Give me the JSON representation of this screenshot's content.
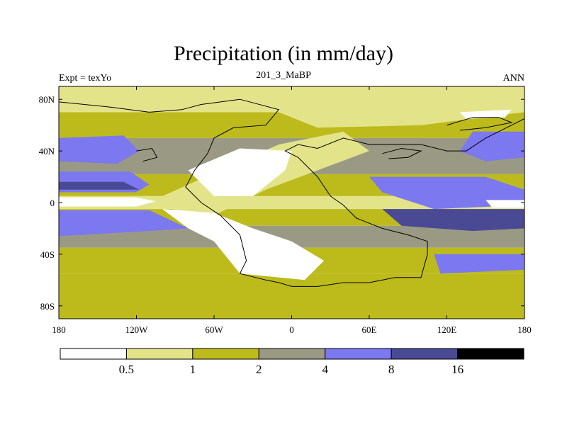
{
  "title": "Precipitation (in mm/day)",
  "left_label": "Expt = texYo",
  "center_label": "201_3_MaBP",
  "right_label": "ANN",
  "lon_ticks": [
    {
      "value": -180,
      "label": "180"
    },
    {
      "value": -120,
      "label": "120W"
    },
    {
      "value": -60,
      "label": "60W"
    },
    {
      "value": 0,
      "label": "0"
    },
    {
      "value": 60,
      "label": "60E"
    },
    {
      "value": 120,
      "label": "120E"
    },
    {
      "value": 180,
      "label": "180"
    }
  ],
  "lat_ticks": [
    {
      "value": 80,
      "label": "80N"
    },
    {
      "value": 40,
      "label": "40N"
    },
    {
      "value": 0,
      "label": "0"
    },
    {
      "value": -40,
      "label": "40S"
    },
    {
      "value": -80,
      "label": "80S"
    }
  ],
  "colorbar": {
    "colors": [
      "#ffffff",
      "#e3e48a",
      "#bdbb1c",
      "#9a9a84",
      "#7b78f0",
      "#4a4a94",
      "#000000"
    ],
    "labels": [
      "0.5",
      "1",
      "2",
      "4",
      "8",
      "16"
    ]
  },
  "bands": [
    {
      "lat": [
        70,
        90
      ],
      "color": "#e3e48a"
    },
    {
      "lat": [
        50,
        70
      ],
      "color": "#bdbb1c"
    },
    {
      "lat": [
        22,
        50
      ],
      "color": "#9a9a84"
    },
    {
      "lat": [
        5,
        22
      ],
      "color": "#bdbb1c"
    },
    {
      "lat": [
        -5,
        5
      ],
      "color": "#e3e48a"
    },
    {
      "lat": [
        -18,
        -5
      ],
      "color": "#bdbb1c"
    },
    {
      "lat": [
        -35,
        -18
      ],
      "color": "#9a9a84"
    },
    {
      "lat": [
        -55,
        -35
      ],
      "color": "#bdbb1c"
    },
    {
      "lat": [
        -90,
        -55
      ],
      "color": "#bdbb1c"
    }
  ],
  "patches": [
    {
      "color": "#7b78f0",
      "points": [
        [
          -180,
          50
        ],
        [
          -130,
          52
        ],
        [
          -118,
          40
        ],
        [
          -135,
          30
        ],
        [
          -180,
          32
        ]
      ]
    },
    {
      "color": "#7b78f0",
      "points": [
        [
          -180,
          24
        ],
        [
          -125,
          24
        ],
        [
          -110,
          14
        ],
        [
          -120,
          8
        ],
        [
          -180,
          8
        ]
      ]
    },
    {
      "color": "#4a4a94",
      "points": [
        [
          -180,
          16
        ],
        [
          -130,
          16
        ],
        [
          -118,
          10
        ],
        [
          -180,
          10
        ]
      ]
    },
    {
      "color": "#ffffff",
      "points": [
        [
          -180,
          4
        ],
        [
          -120,
          4
        ],
        [
          -105,
          1
        ],
        [
          -120,
          -3
        ],
        [
          -180,
          -3
        ]
      ]
    },
    {
      "color": "#7b78f0",
      "points": [
        [
          -180,
          -6
        ],
        [
          -110,
          -6
        ],
        [
          -80,
          -20
        ],
        [
          -110,
          -22
        ],
        [
          -180,
          -26
        ]
      ]
    },
    {
      "color": "#7b78f0",
      "points": [
        [
          140,
          55
        ],
        [
          180,
          55
        ],
        [
          180,
          35
        ],
        [
          150,
          32
        ],
        [
          130,
          40
        ]
      ]
    },
    {
      "color": "#7b78f0",
      "points": [
        [
          60,
          20
        ],
        [
          150,
          20
        ],
        [
          180,
          10
        ],
        [
          180,
          -2
        ],
        [
          110,
          -5
        ],
        [
          70,
          8
        ]
      ]
    },
    {
      "color": "#4a4a94",
      "points": [
        [
          70,
          -5
        ],
        [
          180,
          -5
        ],
        [
          180,
          -20
        ],
        [
          140,
          -22
        ],
        [
          85,
          -18
        ]
      ]
    },
    {
      "color": "#ffffff",
      "points": [
        [
          150,
          2
        ],
        [
          180,
          2
        ],
        [
          180,
          -4
        ],
        [
          155,
          -4
        ]
      ]
    },
    {
      "color": "#7b78f0",
      "points": [
        [
          110,
          -40
        ],
        [
          180,
          -40
        ],
        [
          180,
          -52
        ],
        [
          115,
          -55
        ]
      ]
    },
    {
      "color": "#e3e48a",
      "points": [
        [
          -100,
          5
        ],
        [
          -10,
          45
        ],
        [
          40,
          55
        ],
        [
          60,
          40
        ],
        [
          -20,
          10
        ],
        [
          -80,
          -20
        ]
      ]
    },
    {
      "color": "#ffffff",
      "points": [
        [
          -80,
          25
        ],
        [
          -40,
          42
        ],
        [
          0,
          40
        ],
        [
          -5,
          25
        ],
        [
          -30,
          5
        ],
        [
          -60,
          5
        ]
      ]
    },
    {
      "color": "#ffffff",
      "points": [
        [
          -100,
          -5
        ],
        [
          -60,
          -8
        ],
        [
          -30,
          -20
        ],
        [
          0,
          -30
        ],
        [
          25,
          -45
        ],
        [
          10,
          -60
        ],
        [
          -40,
          -55
        ],
        [
          -60,
          -30
        ],
        [
          -80,
          -20
        ]
      ]
    },
    {
      "color": "#e3e48a",
      "points": [
        [
          -10,
          70
        ],
        [
          40,
          80
        ],
        [
          110,
          72
        ],
        [
          150,
          75
        ],
        [
          180,
          80
        ],
        [
          180,
          70
        ],
        [
          100,
          60
        ],
        [
          20,
          58
        ]
      ]
    },
    {
      "color": "#ffffff",
      "points": [
        [
          130,
          70
        ],
        [
          170,
          72
        ],
        [
          165,
          66
        ],
        [
          135,
          65
        ]
      ]
    }
  ],
  "outlines": [
    {
      "points": [
        [
          -180,
          78
        ],
        [
          -140,
          74
        ],
        [
          -110,
          70
        ],
        [
          -85,
          72
        ],
        [
          -70,
          76
        ],
        [
          -40,
          80
        ],
        [
          -10,
          72
        ],
        [
          -20,
          60
        ],
        [
          -45,
          58
        ],
        [
          -60,
          50
        ],
        [
          -65,
          38
        ],
        [
          -75,
          25
        ],
        [
          -82,
          12
        ],
        [
          -70,
          0
        ],
        [
          -55,
          -10
        ],
        [
          -40,
          -25
        ],
        [
          -35,
          -45
        ],
        [
          -40,
          -55
        ],
        [
          -20,
          -60
        ],
        [
          -10,
          -62
        ],
        [
          0,
          -65
        ],
        [
          20,
          -65
        ],
        [
          40,
          -62
        ],
        [
          60,
          -62
        ],
        [
          80,
          -58
        ],
        [
          100,
          -58
        ],
        [
          105,
          -40
        ],
        [
          105,
          -30
        ],
        [
          90,
          -25
        ],
        [
          70,
          -20
        ],
        [
          50,
          -12
        ],
        [
          40,
          -2
        ],
        [
          30,
          5
        ],
        [
          20,
          20
        ],
        [
          5,
          35
        ],
        [
          -5,
          40
        ],
        [
          5,
          45
        ],
        [
          20,
          42
        ],
        [
          40,
          50
        ],
        [
          60,
          45
        ],
        [
          100,
          45
        ],
        [
          120,
          40
        ],
        [
          135,
          40
        ],
        [
          150,
          50
        ],
        [
          170,
          60
        ],
        [
          180,
          65
        ]
      ]
    },
    {
      "points": [
        [
          120,
          60
        ],
        [
          140,
          66
        ],
        [
          160,
          66
        ],
        [
          170,
          62
        ],
        [
          150,
          58
        ],
        [
          130,
          56
        ]
      ]
    },
    {
      "points": [
        [
          70,
          38
        ],
        [
          85,
          42
        ],
        [
          100,
          40
        ],
        [
          90,
          35
        ],
        [
          75,
          34
        ]
      ]
    },
    {
      "points": [
        [
          -120,
          40
        ],
        [
          -108,
          42
        ],
        [
          -104,
          35
        ],
        [
          -115,
          32
        ]
      ]
    }
  ]
}
